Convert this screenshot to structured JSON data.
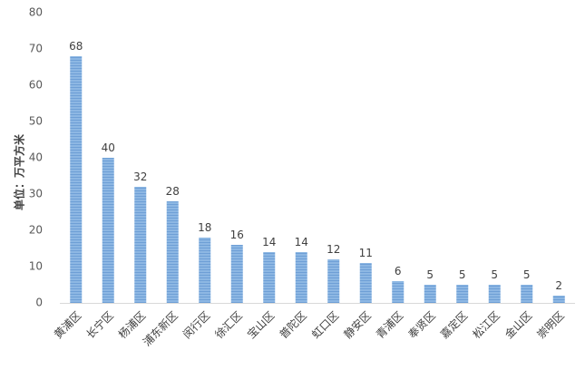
{
  "chart_data": {
    "type": "bar",
    "title": "",
    "xlabel": "",
    "ylabel": "单位：万平方米",
    "ylim": [
      0,
      80
    ],
    "yticks": [
      0,
      10,
      20,
      30,
      40,
      50,
      60,
      70,
      80
    ],
    "grid": false,
    "legend": "none",
    "categories": [
      "黄浦区",
      "长宁区",
      "杨浦区",
      "浦东新区",
      "闵行区",
      "徐汇区",
      "宝山区",
      "普陀区",
      "虹口区",
      "静安区",
      "青浦区",
      "奉贤区",
      "嘉定区",
      "松江区",
      "金山区",
      "崇明区"
    ],
    "values": [
      68,
      40,
      32,
      28,
      18,
      16,
      14,
      14,
      12,
      11,
      6,
      5,
      5,
      5,
      5,
      2
    ],
    "bar_fill": "#8db7e3",
    "bar_stripe": "#6e9fd6",
    "axis_color": "#d9d9d9"
  }
}
